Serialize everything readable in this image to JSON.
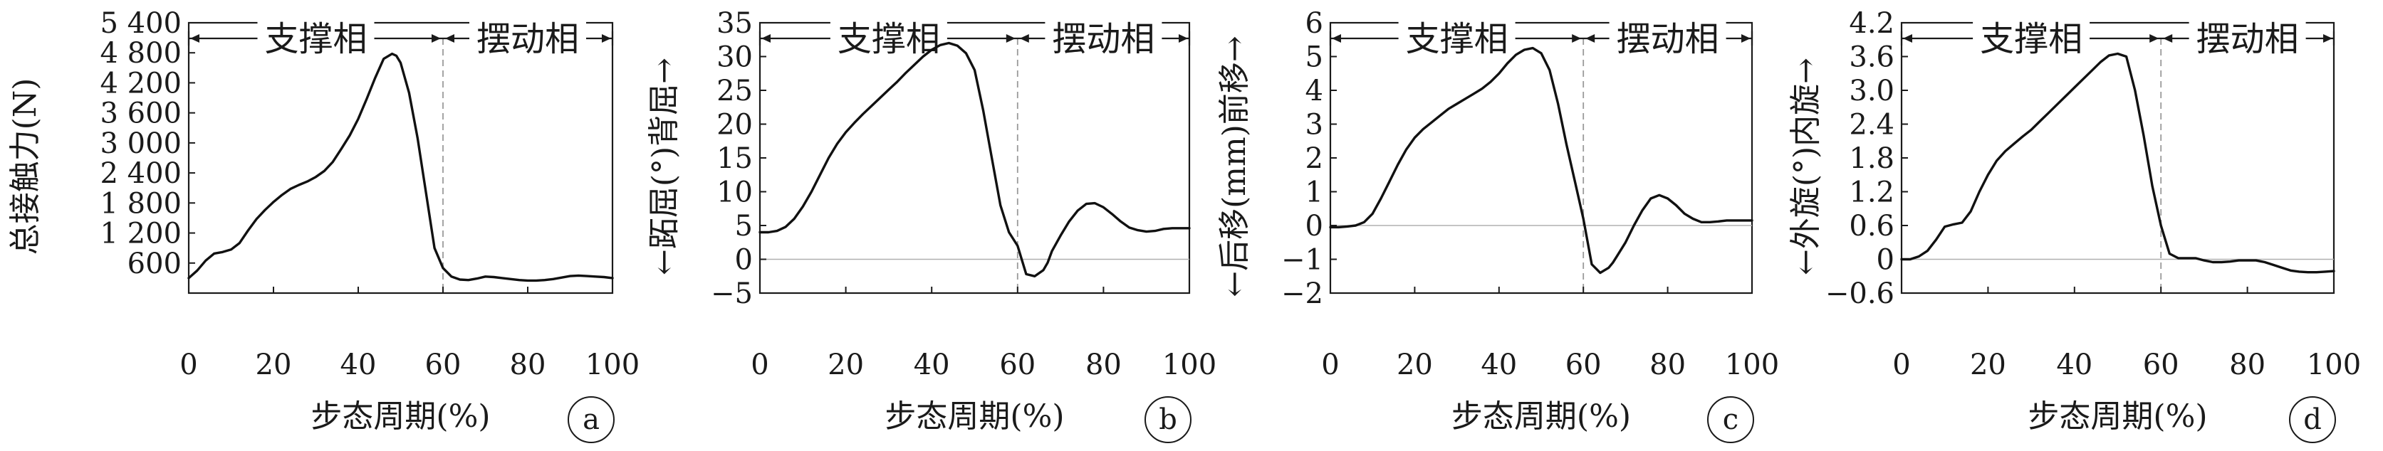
{
  "charts": [
    {
      "badge": "a",
      "ylabel": "总接触力(N)",
      "xlabel": "步态周期(%)",
      "phase_stance": "支撑相",
      "phase_swing": "摆动相",
      "yticks": [
        600,
        1200,
        1800,
        2400,
        3000,
        3600,
        4200,
        4800,
        5400
      ],
      "ytick_labels": [
        "600",
        "1 200",
        "1 800",
        "2 400",
        "3 000",
        "3 600",
        "4 200",
        "4 800",
        "5 400"
      ],
      "xticks": [
        0,
        20,
        40,
        60,
        80,
        100
      ],
      "xtick_labels": [
        "0",
        "20",
        "40",
        "60",
        "80",
        "100"
      ]
    },
    {
      "badge": "b",
      "ylabel": "←跖屈(°)背屈→",
      "xlabel": "步态周期(%)",
      "phase_stance": "支撑相",
      "phase_swing": "摆动相",
      "yticks": [
        -5,
        0,
        5,
        10,
        15,
        20,
        25,
        30,
        35
      ],
      "ytick_labels": [
        "−5",
        "0",
        "5",
        "10",
        "15",
        "20",
        "25",
        "30",
        "35"
      ],
      "xticks": [
        0,
        20,
        40,
        60,
        80,
        100
      ],
      "xtick_labels": [
        "0",
        "20",
        "40",
        "60",
        "80",
        "100"
      ]
    },
    {
      "badge": "c",
      "ylabel": "←后移(mm)前移→",
      "xlabel": "步态周期(%)",
      "phase_stance": "支撑相",
      "phase_swing": "摆动相",
      "yticks": [
        -2,
        -1,
        0,
        1,
        2,
        3,
        4,
        5,
        6
      ],
      "ytick_labels": [
        "−2",
        "−1",
        "0",
        "1",
        "2",
        "3",
        "4",
        "5",
        "6"
      ],
      "xticks": [
        0,
        20,
        40,
        60,
        80,
        100
      ],
      "xtick_labels": [
        "0",
        "20",
        "40",
        "60",
        "80",
        "100"
      ]
    },
    {
      "badge": "d",
      "ylabel": "←外旋(°)内旋→",
      "xlabel": "步态周期(%)",
      "phase_stance": "支撑相",
      "phase_swing": "摆动相",
      "yticks": [
        -0.6,
        0,
        0.6,
        1.2,
        1.8,
        2.4,
        3.0,
        3.6,
        4.2
      ],
      "ytick_labels": [
        "−0.6",
        "0",
        "0.6",
        "1.2",
        "1.8",
        "2.4",
        "3.0",
        "3.6",
        "4.2"
      ],
      "xticks": [
        0,
        20,
        40,
        60,
        80,
        100
      ],
      "xtick_labels": [
        "0",
        "20",
        "40",
        "60",
        "80",
        "100"
      ]
    }
  ],
  "chart_data": [
    {
      "type": "line",
      "ylabel": "总接触力(N)",
      "xlabel": "步态周期(%)",
      "xlim": [
        0,
        100
      ],
      "ylim": [
        0,
        5400
      ],
      "zero_line": false,
      "phase_boundary_x": 60,
      "x": [
        0,
        2,
        4,
        6,
        8,
        10,
        12,
        14,
        16,
        18,
        20,
        22,
        24,
        26,
        28,
        30,
        32,
        34,
        36,
        38,
        40,
        42,
        44,
        46,
        48,
        49,
        50,
        52,
        54,
        56,
        58,
        60,
        62,
        64,
        66,
        68,
        70,
        72,
        74,
        76,
        78,
        80,
        82,
        84,
        86,
        88,
        90,
        92,
        94,
        96,
        98,
        100
      ],
      "y": [
        300,
        450,
        650,
        790,
        820,
        870,
        1000,
        1250,
        1480,
        1660,
        1820,
        1960,
        2080,
        2160,
        2230,
        2320,
        2440,
        2620,
        2880,
        3150,
        3480,
        3880,
        4300,
        4680,
        4780,
        4740,
        4600,
        4000,
        3100,
        2000,
        900,
        500,
        330,
        270,
        260,
        290,
        330,
        320,
        300,
        280,
        260,
        250,
        250,
        260,
        280,
        310,
        340,
        350,
        340,
        330,
        320,
        300
      ]
    },
    {
      "type": "line",
      "ylabel": "←跖屈(°)背屈→",
      "xlabel": "步态周期(%)",
      "xlim": [
        0,
        100
      ],
      "ylim": [
        -5,
        35
      ],
      "zero_line": true,
      "phase_boundary_x": 60,
      "x": [
        0,
        2,
        4,
        6,
        8,
        10,
        12,
        14,
        16,
        18,
        20,
        22,
        24,
        26,
        28,
        30,
        32,
        34,
        36,
        38,
        40,
        42,
        44,
        46,
        48,
        50,
        52,
        54,
        56,
        58,
        60,
        62,
        64,
        66,
        67,
        68,
        70,
        72,
        74,
        76,
        78,
        80,
        82,
        84,
        86,
        88,
        90,
        92,
        94,
        96,
        98,
        100
      ],
      "y": [
        4,
        4,
        4.2,
        4.8,
        6,
        7.8,
        10,
        12.5,
        15,
        17.1,
        18.8,
        20.2,
        21.5,
        22.7,
        23.9,
        25.1,
        26.3,
        27.6,
        28.8,
        30,
        31,
        31.7,
        32,
        31.6,
        30.5,
        28,
        22,
        15,
        8,
        4,
        2,
        -2.2,
        -2.5,
        -1.6,
        -0.5,
        1.2,
        3.5,
        5.6,
        7.2,
        8.2,
        8.3,
        7.7,
        6.7,
        5.6,
        4.7,
        4.3,
        4.1,
        4.2,
        4.5,
        4.6,
        4.6,
        4.6
      ]
    },
    {
      "type": "line",
      "ylabel": "←后移(mm)前移→",
      "xlabel": "步态周期(%)",
      "xlim": [
        0,
        100
      ],
      "ylim": [
        -2,
        6
      ],
      "zero_line": true,
      "phase_boundary_x": 60,
      "x": [
        0,
        2,
        4,
        6,
        8,
        10,
        12,
        14,
        16,
        18,
        20,
        22,
        24,
        26,
        28,
        30,
        32,
        34,
        36,
        38,
        40,
        42,
        44,
        46,
        48,
        50,
        52,
        54,
        56,
        58,
        60,
        62,
        64,
        66,
        67,
        68,
        70,
        72,
        74,
        76,
        78,
        80,
        82,
        84,
        86,
        88,
        90,
        92,
        94,
        96,
        98,
        100
      ],
      "y": [
        -0.05,
        -0.05,
        -0.03,
        0,
        0.1,
        0.35,
        0.8,
        1.3,
        1.8,
        2.25,
        2.6,
        2.85,
        3.05,
        3.25,
        3.45,
        3.6,
        3.75,
        3.9,
        4.05,
        4.25,
        4.5,
        4.8,
        5.05,
        5.2,
        5.25,
        5.1,
        4.6,
        3.6,
        2.4,
        1.3,
        0.2,
        -1.15,
        -1.4,
        -1.25,
        -1.1,
        -0.9,
        -0.5,
        0,
        0.45,
        0.8,
        0.9,
        0.8,
        0.6,
        0.35,
        0.2,
        0.1,
        0.1,
        0.12,
        0.15,
        0.15,
        0.15,
        0.15
      ]
    },
    {
      "type": "line",
      "ylabel": "←外旋(°)内旋→",
      "xlabel": "步态周期(%)",
      "xlim": [
        0,
        100
      ],
      "ylim": [
        -0.6,
        4.2
      ],
      "zero_line": true,
      "phase_boundary_x": 60,
      "x": [
        0,
        2,
        4,
        6,
        8,
        10,
        12,
        14,
        16,
        18,
        20,
        22,
        24,
        26,
        28,
        30,
        32,
        34,
        36,
        38,
        40,
        42,
        44,
        46,
        48,
        50,
        52,
        54,
        56,
        58,
        60,
        62,
        64,
        66,
        68,
        70,
        72,
        74,
        76,
        78,
        80,
        82,
        84,
        86,
        88,
        90,
        92,
        94,
        96,
        98,
        100
      ],
      "y": [
        0,
        0,
        0.05,
        0.15,
        0.35,
        0.58,
        0.62,
        0.65,
        0.85,
        1.2,
        1.5,
        1.75,
        1.92,
        2.05,
        2.18,
        2.3,
        2.45,
        2.6,
        2.75,
        2.9,
        3.05,
        3.2,
        3.35,
        3.5,
        3.62,
        3.65,
        3.6,
        3.0,
        2.2,
        1.3,
        0.6,
        0.1,
        0.02,
        0.02,
        0.02,
        -0.02,
        -0.05,
        -0.05,
        -0.04,
        -0.02,
        -0.02,
        -0.02,
        -0.05,
        -0.1,
        -0.15,
        -0.2,
        -0.22,
        -0.23,
        -0.23,
        -0.22,
        -0.21
      ]
    }
  ]
}
